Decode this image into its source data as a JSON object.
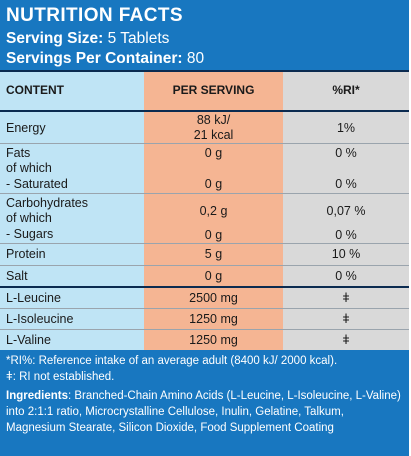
{
  "header": {
    "title": "NUTRITION FACTS",
    "serving_size_label": "Serving Size:",
    "serving_size_value": "5 Tablets",
    "servings_label": "Servings Per Container:",
    "servings_value": "80"
  },
  "table": {
    "columns": [
      "CONTENT",
      "PER SERVING",
      "%RI*"
    ],
    "rows": [
      {
        "content": [
          "Energy"
        ],
        "per_serving": [
          "88 kJ/",
          "21 kcal"
        ],
        "ri": [
          "1%"
        ]
      },
      {
        "content": [
          "Fats",
          "of which",
          "- Saturated"
        ],
        "per_serving": [
          "0 g",
          "",
          "0 g"
        ],
        "ri": [
          "0 %",
          "",
          "0 %"
        ]
      },
      {
        "content": [
          "Carbohydrates",
          "of which",
          "- Sugars"
        ],
        "per_serving": [
          "0,2 g",
          "",
          "0 g"
        ],
        "ri": [
          "0,07 %",
          "",
          "0 %"
        ]
      },
      {
        "content": [
          "Protein"
        ],
        "per_serving": [
          "5 g"
        ],
        "ri": [
          "10 %"
        ]
      },
      {
        "content": [
          "Salt"
        ],
        "per_serving": [
          "0 g"
        ],
        "ri": [
          "0 %"
        ]
      },
      {
        "content": [
          "L-Leucine"
        ],
        "per_serving": [
          "2500 mg"
        ],
        "ri": [
          "ǂ"
        ]
      },
      {
        "content": [
          "L-Isoleucine"
        ],
        "per_serving": [
          "1250 mg"
        ],
        "ri": [
          "ǂ"
        ]
      },
      {
        "content": [
          "L-Valine"
        ],
        "per_serving": [
          "1250 mg"
        ],
        "ri": [
          "ǂ"
        ]
      }
    ]
  },
  "notes": {
    "ri_footnote": "*RI%:  Reference intake of an average adult (8400 kJ/ 2000 kcal).",
    "ri_not_established": "ǂ: RI not established.",
    "ingredients_label": "Ingredients",
    "ingredients_text": ": Branched-Chain Amino Acids (L-Leucine, L-Isoleucine, L-Valine) into 2:1:1 ratio, Microcrystalline Cellulose, Inulin, Gelatine, Talkum, Magnesium Stearate, Silicon Dioxide, Food Supplement Coating"
  },
  "colors": {
    "panel_blue": "#1877c0",
    "content_col": "#bfe4f5",
    "serving_col": "#f5b593",
    "ri_col": "#d9d9d9",
    "divider": "#0b2b50"
  }
}
